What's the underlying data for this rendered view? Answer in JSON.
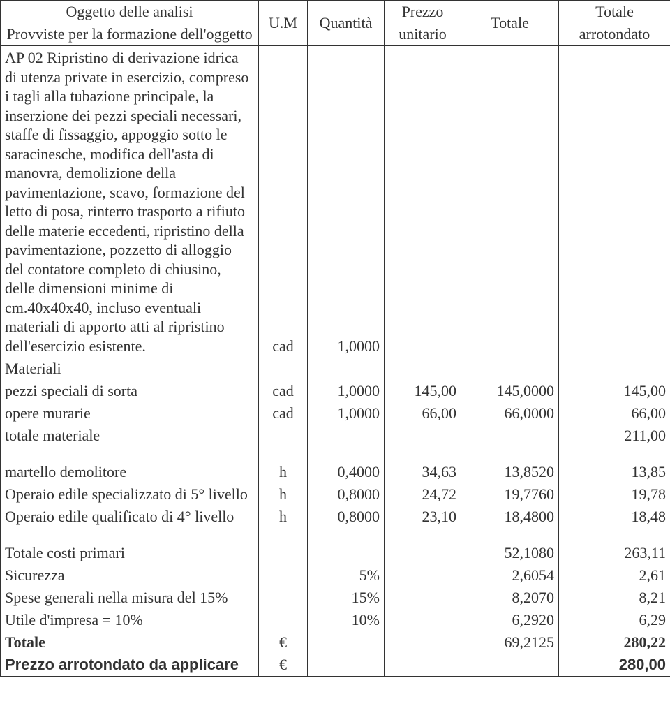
{
  "header": {
    "desc_line1": "Oggetto delle analisi",
    "desc_line2": "Provviste per la formazione dell'oggetto",
    "um": "U.M",
    "qty": "Quantità",
    "pu_line1": "Prezzo",
    "pu_line2": "unitario",
    "tot": "Totale",
    "tota_line1": "Totale",
    "tota_line2": "arrotondato"
  },
  "description": "AP 02 Ripristino di derivazione idrica di utenza private in esercizio, compreso i tagli alla tubazione principale, la inserzione dei pezzi speciali necessari, staffe di fissaggio, appoggio sotto le saracinesche, modifica dell'asta di manovra, demolizione della pavimentazione, scavo, formazione del letto di posa, rinterro trasporto a rifiuto delle materie eccedenti, ripristino della pavimentazione, pozzetto di alloggio del contatore completo di chiusino, delle dimensioni minime di cm.40x40x40, incluso eventuali materiali di apporto atti al ripristino dell'esercizio esistente.",
  "desc_um": "cad",
  "desc_qty": "1,0000",
  "materiali_label": "Materiali",
  "rows": [
    {
      "label": "pezzi speciali di sorta",
      "um": "cad",
      "qty": "1,0000",
      "pu": "145,00",
      "tot": "145,0000",
      "tota": "145,00"
    },
    {
      "label": "opere murarie",
      "um": "cad",
      "qty": "1,0000",
      "pu": "66,00",
      "tot": "66,0000",
      "tota": "66,00"
    }
  ],
  "totale_materiale": {
    "label": "totale materiale",
    "tota": "211,00"
  },
  "rows2": [
    {
      "label": "martello demolitore",
      "um": "h",
      "qty": "0,4000",
      "pu": "34,63",
      "tot": "13,8520",
      "tota": "13,85"
    },
    {
      "label": "Operaio edile specializzato di 5° livello",
      "um": "h",
      "qty": "0,8000",
      "pu": "24,72",
      "tot": "19,7760",
      "tota": "19,78"
    },
    {
      "label": "Operaio edile qualificato di 4° livello",
      "um": "h",
      "qty": "0,8000",
      "pu": "23,10",
      "tot": "18,4800",
      "tota": "18,48"
    }
  ],
  "summary": {
    "primari": {
      "label": "Totale costi primari",
      "tot": "52,1080",
      "tota": "263,11"
    },
    "sicurezza": {
      "label": "Sicurezza",
      "pct": "5%",
      "tot": "2,6054",
      "tota": "2,61"
    },
    "spese": {
      "label": "Spese generali nella misura del 15%",
      "pct": "15%",
      "tot": "8,2070",
      "tota": "8,21"
    },
    "utile": {
      "label": "Utile d'impresa = 10%",
      "pct": "10%",
      "tot": "6,2920",
      "tota": "6,29"
    },
    "totale": {
      "label": "Totale",
      "eur": "€",
      "tot": "69,2125",
      "tota": "280,22"
    },
    "prezzo": {
      "label": "Prezzo arrotondato da applicare",
      "eur": "€",
      "tota": "280,00"
    }
  }
}
